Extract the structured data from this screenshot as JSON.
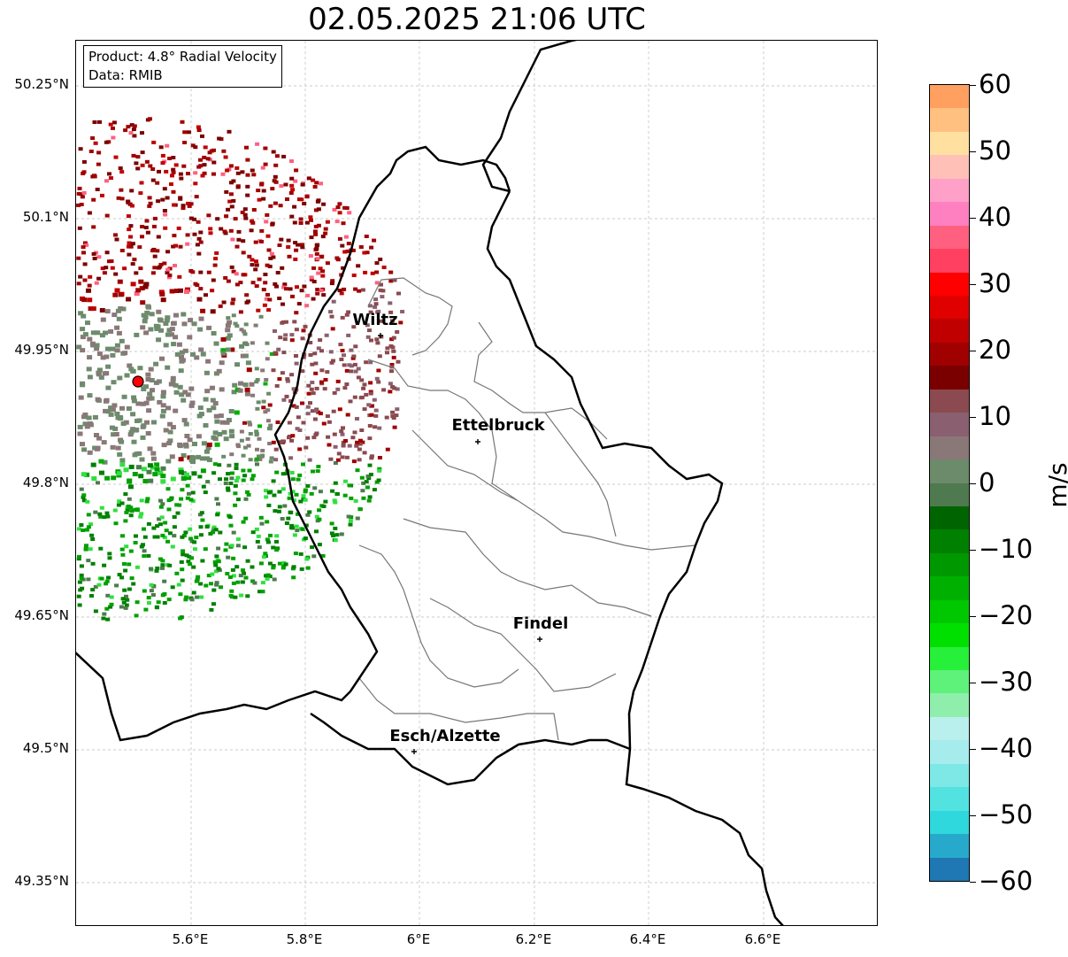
{
  "title": "02.05.2025 21:06 UTC",
  "info": {
    "product": "Product: 4.8° Radial Velocity",
    "data": "Data: RMIB"
  },
  "lat_labels": [
    "50.25°N",
    "50.1°N",
    "49.95°N",
    "49.8°N",
    "49.65°N",
    "49.5°N",
    "49.35°N"
  ],
  "lon_labels": [
    "5.6°E",
    "5.8°E",
    "6°E",
    "6.2°E",
    "6.4°E",
    "6.6°E"
  ],
  "cities": [
    {
      "name": "Wiltz"
    },
    {
      "name": "Ettelbruck"
    },
    {
      "name": "Findel"
    },
    {
      "name": "Esch/Alzette"
    }
  ],
  "colorbar": {
    "unit": "m/s",
    "ticks": [
      "60",
      "50",
      "40",
      "30",
      "20",
      "10",
      "0",
      "−10",
      "−20",
      "−30",
      "−40",
      "−50",
      "−60"
    ],
    "range": [
      -60,
      60
    ],
    "colors": [
      "#1f77b4",
      "#27a9cc",
      "#2fd8dc",
      "#52e3e1",
      "#7de8e6",
      "#a6ecec",
      "#b9f0ee",
      "#90eeac",
      "#5ef27a",
      "#27f03a",
      "#00e000",
      "#00c800",
      "#00b000",
      "#009800",
      "#008000",
      "#006400",
      "#4f7a4f",
      "#6b8b6b",
      "#8a7878",
      "#8a6070",
      "#8a4a50",
      "#7a0000",
      "#a00000",
      "#c00000",
      "#e00000",
      "#ff0000",
      "#ff4060",
      "#ff6080",
      "#ff80c0",
      "#ffa0c8",
      "#ffc0b8",
      "#ffe0a0",
      "#ffc080",
      "#ffa060"
    ]
  },
  "radar_site_color": "#ff0000"
}
